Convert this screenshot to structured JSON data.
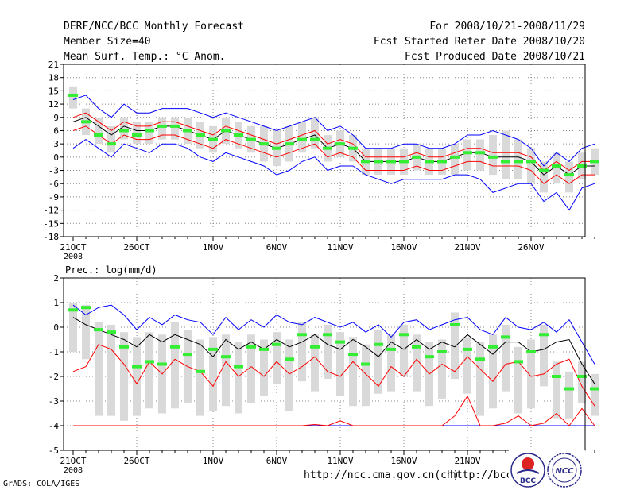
{
  "header": {
    "title": "DERF/NCC/BCC Monthly Forecast",
    "member": "Member Size=40",
    "variable": "Mean Surf. Temp.: °C Anom.",
    "period": "For 2008/10/21-2008/11/29",
    "refer": "Fcst Started Refer Date 2008/10/20",
    "produced": "Fcst Produced Date 2008/10/21"
  },
  "footer": {
    "grads": "GrADS: COLA/IGES",
    "url1": "http://ncc.cma.gov.cn(ch)",
    "url2": "http://bcc.c",
    "logo_bcc": "BCC",
    "logo_ncc": "NCC"
  },
  "colors": {
    "mean": "#000000",
    "bound_outer": "#0000ff",
    "bound_inner": "#ff0000",
    "median": "#33ee33",
    "box": "#d9d9d9",
    "grid": "#888888"
  },
  "chart_data": [
    {
      "type": "line",
      "title": "Mean Surf. Temp.: °C Anom.",
      "ylim": [
        -18,
        21
      ],
      "yticks": [
        "21",
        "18",
        "15",
        "12",
        "9",
        "6",
        "3",
        "0",
        "-3",
        "-6",
        "-9",
        "-12",
        "-15",
        "-18"
      ],
      "xticks": [
        {
          "day": 0,
          "label": "21OCT",
          "sub": "2008"
        },
        {
          "day": 5,
          "label": "26OCT"
        },
        {
          "day": 11,
          "label": "1NOV"
        },
        {
          "day": 16,
          "label": "6NOV"
        },
        {
          "day": 21,
          "label": "11NOV"
        },
        {
          "day": 26,
          "label": "16NOV"
        },
        {
          "day": 31,
          "label": "21NOV"
        },
        {
          "day": 36,
          "label": "26NOV"
        }
      ],
      "series": [
        {
          "name": "mean",
          "values": [
            8,
            9,
            7,
            5,
            7,
            6,
            6,
            7,
            7,
            6,
            5,
            4,
            6,
            5,
            4,
            3,
            2,
            3,
            4,
            5,
            2,
            3,
            2,
            -1,
            -1,
            -1,
            -1,
            0,
            -1,
            -1,
            0,
            1,
            1,
            0,
            0,
            0,
            -1,
            -4,
            -2,
            -4,
            -2,
            -2
          ]
        },
        {
          "name": "upper_outer",
          "values": [
            13,
            14,
            11,
            9,
            12,
            10,
            10,
            11,
            11,
            11,
            10,
            9,
            10,
            9,
            8,
            7,
            6,
            7,
            8,
            9,
            6,
            7,
            5,
            2,
            2,
            2,
            3,
            3,
            2,
            2,
            3,
            5,
            5,
            6,
            5,
            4,
            2,
            -2,
            1,
            -1,
            2,
            3
          ]
        },
        {
          "name": "lower_outer",
          "values": [
            2,
            4,
            2,
            0,
            3,
            2,
            1,
            3,
            3,
            2,
            0,
            -1,
            1,
            0,
            -1,
            -2,
            -4,
            -3,
            -1,
            0,
            -3,
            -2,
            -2,
            -4,
            -5,
            -6,
            -5,
            -5,
            -5,
            -5,
            -4,
            -4,
            -5,
            -8,
            -7,
            -6,
            -6,
            -10,
            -8,
            -12,
            -7,
            -6
          ]
        },
        {
          "name": "upper_inner",
          "values": [
            9,
            10,
            8,
            6,
            8,
            7,
            7,
            8,
            8,
            7,
            6,
            5,
            7,
            6,
            5,
            4,
            3,
            4,
            5,
            6,
            3,
            4,
            3,
            0,
            0,
            0,
            0,
            1,
            0,
            0,
            1,
            2,
            2,
            1,
            1,
            1,
            0,
            -3,
            -1,
            -3,
            -1,
            -1
          ]
        },
        {
          "name": "lower_inner",
          "values": [
            6,
            7,
            5,
            3,
            5,
            4,
            4,
            5,
            5,
            4,
            3,
            2,
            4,
            3,
            2,
            1,
            0,
            1,
            2,
            3,
            0,
            1,
            0,
            -3,
            -3,
            -3,
            -3,
            -2,
            -3,
            -3,
            -2,
            -1,
            -1,
            -2,
            -2,
            -2,
            -3,
            -6,
            -4,
            -6,
            -4,
            -4
          ]
        },
        {
          "name": "median",
          "values": [
            14,
            8,
            5,
            3,
            6,
            5,
            6,
            7,
            7,
            6,
            5,
            4,
            6,
            5,
            4,
            3,
            2,
            3,
            4,
            4,
            2,
            3,
            2,
            -1,
            -1,
            -1,
            -1,
            0,
            -1,
            -1,
            0,
            1,
            1,
            0,
            -1,
            -1,
            -1,
            -3,
            -2,
            -4,
            -2,
            -1
          ]
        },
        {
          "name": "box_high",
          "values": [
            16,
            11,
            9,
            7,
            9,
            8,
            8,
            9,
            9,
            9,
            8,
            7,
            9,
            8,
            7,
            7,
            6,
            7,
            8,
            9,
            5,
            6,
            5,
            2,
            2,
            2,
            2,
            3,
            2,
            2,
            3,
            4,
            4,
            5,
            6,
            4,
            2,
            -1,
            1,
            -1,
            1,
            2
          ]
        },
        {
          "name": "box_low",
          "values": [
            11,
            5,
            3,
            1,
            4,
            3,
            3,
            4,
            4,
            3,
            2,
            1,
            3,
            2,
            1,
            -1,
            -2,
            -1,
            1,
            2,
            -1,
            0,
            -1,
            -4,
            -4,
            -4,
            -4,
            -3,
            -4,
            -4,
            -4,
            -3,
            -3,
            -4,
            -5,
            -5,
            -6,
            -8,
            -6,
            -8,
            -5,
            -4
          ]
        }
      ]
    },
    {
      "type": "line",
      "title": "Prec.: log(mm/d)",
      "ylim": [
        -5,
        2
      ],
      "yticks": [
        "2",
        "1",
        "0",
        "-1",
        "-2",
        "-3",
        "-4",
        "-5"
      ],
      "xticks": [
        {
          "day": 0,
          "label": "21OCT",
          "sub": "2008"
        },
        {
          "day": 5,
          "label": "26OCT"
        },
        {
          "day": 11,
          "label": "1NOV"
        },
        {
          "day": 16,
          "label": "6NOV"
        },
        {
          "day": 21,
          "label": "11NOV"
        },
        {
          "day": 26,
          "label": "16NOV"
        },
        {
          "day": 31,
          "label": "21NOV"
        },
        {
          "day": 36,
          "label": "26NOV"
        }
      ],
      "series": [
        {
          "name": "upper_outer",
          "values": [
            0.9,
            0.5,
            0.8,
            0.9,
            0.5,
            -0.1,
            0.4,
            0.1,
            0.5,
            0.3,
            0.2,
            -0.3,
            0.4,
            -0.1,
            0.3,
            0.0,
            0.5,
            0.2,
            0.1,
            0.4,
            0.2,
            0.0,
            0.2,
            -0.2,
            0.1,
            -0.4,
            0.2,
            0.3,
            -0.1,
            0.1,
            0.3,
            0.4,
            -0.1,
            -0.3,
            0.4,
            0.0,
            -0.1,
            0.2,
            -0.2,
            0.3,
            -0.6,
            -1.5
          ]
        },
        {
          "name": "mean",
          "values": [
            0.4,
            0.1,
            -0.1,
            -0.3,
            -0.5,
            -0.8,
            -0.3,
            -0.6,
            -0.3,
            -0.5,
            -0.7,
            -1.2,
            -0.5,
            -0.9,
            -0.6,
            -0.9,
            -0.5,
            -0.8,
            -0.6,
            -0.3,
            -0.7,
            -0.9,
            -0.5,
            -0.8,
            -1.2,
            -0.6,
            -0.9,
            -0.5,
            -0.9,
            -0.6,
            -0.8,
            -0.3,
            -0.7,
            -1.1,
            -0.6,
            -0.6,
            -1.0,
            -0.9,
            -0.6,
            -0.5,
            -1.5,
            -2.3
          ]
        },
        {
          "name": "lower_inner",
          "values": [
            -1.8,
            -1.6,
            -0.7,
            -0.9,
            -1.5,
            -2.3,
            -1.4,
            -1.9,
            -1.3,
            -1.6,
            -1.8,
            -2.4,
            -1.4,
            -2.0,
            -1.6,
            -2.0,
            -1.4,
            -1.9,
            -1.6,
            -1.2,
            -1.8,
            -2.0,
            -1.4,
            -1.9,
            -2.4,
            -1.6,
            -2.0,
            -1.3,
            -1.9,
            -1.5,
            -1.8,
            -1.2,
            -1.7,
            -2.2,
            -1.5,
            -1.4,
            -2.0,
            -1.9,
            -1.5,
            -1.3,
            -2.4,
            -3.2
          ]
        },
        {
          "name": "lower_outer",
          "values": [
            -4,
            -4,
            -4,
            -4,
            -4,
            -4,
            -4,
            -4,
            -4,
            -4,
            -4,
            -4,
            -4,
            -4,
            -4,
            -4,
            -4,
            -4,
            -4,
            -4,
            -4,
            -4,
            -4,
            -4,
            -4,
            -4,
            -4,
            -4,
            -4,
            -4,
            -4,
            -4,
            -4,
            -4,
            -4,
            -4,
            -4,
            -4,
            -4,
            -4,
            -4,
            -4
          ]
        },
        {
          "name": "extreme_low_red",
          "values": [
            -4,
            -4,
            -4,
            -4,
            -4,
            -4,
            -4,
            -4,
            -4,
            -4,
            -4,
            -4,
            -4,
            -4,
            -4,
            -4,
            -4,
            -4,
            -4,
            -3.95,
            -4,
            -3.8,
            -4,
            -4,
            -4,
            -4,
            -4,
            -4,
            -4,
            -4,
            -3.6,
            -2.8,
            -4,
            -4,
            -3.9,
            -3.6,
            -4,
            -3.9,
            -3.5,
            -4,
            -3.3,
            -4
          ]
        },
        {
          "name": "median",
          "values": [
            0.7,
            0.8,
            -0.1,
            -0.2,
            -0.8,
            -1.6,
            -1.4,
            -1.5,
            -0.8,
            -1.1,
            -1.8,
            -0.9,
            -1.2,
            -1.6,
            -0.8,
            -0.9,
            -0.7,
            -1.3,
            -0.3,
            -0.8,
            -0.3,
            -0.6,
            -1.1,
            -1.5,
            -0.7,
            -0.9,
            -0.3,
            -0.8,
            -1.2,
            -1.0,
            0.1,
            -0.9,
            -1.3,
            -0.8,
            -0.4,
            -1.4,
            -1.0,
            -0.3,
            -2.0,
            -2.5,
            -2.0,
            -2.5
          ]
        },
        {
          "name": "box_high",
          "values": [
            1.0,
            0.9,
            0.2,
            0.1,
            -0.2,
            -0.4,
            -0.2,
            -0.3,
            0.2,
            -0.1,
            -0.5,
            -0.4,
            -0.3,
            -0.6,
            -0.3,
            -0.5,
            -0.2,
            -0.5,
            0.2,
            -0.3,
            0.1,
            -0.2,
            -0.4,
            -0.7,
            -0.1,
            -0.3,
            0.1,
            -0.3,
            -0.6,
            -0.5,
            0.6,
            -0.4,
            -0.6,
            -0.3,
            0.1,
            -0.8,
            -0.5,
            0.1,
            -1.4,
            -1.8,
            -1.4,
            -1.9
          ]
        },
        {
          "name": "box_low",
          "values": [
            -1.0,
            -1.3,
            -3.6,
            -3.6,
            -3.8,
            -3.6,
            -3.3,
            -3.5,
            -3.3,
            -3.1,
            -3.6,
            -3.4,
            -3.2,
            -3.5,
            -3.1,
            -2.8,
            -2.3,
            -3.4,
            -2.2,
            -2.6,
            -2.1,
            -2.8,
            -3.2,
            -3.2,
            -2.7,
            -2.6,
            -2.0,
            -2.6,
            -3.2,
            -2.9,
            -2.1,
            -2.7,
            -3.6,
            -3.3,
            -2.6,
            -3.5,
            -3.3,
            -2.4,
            -3.7,
            -3.7,
            -3.1,
            -3.6
          ]
        }
      ]
    }
  ]
}
